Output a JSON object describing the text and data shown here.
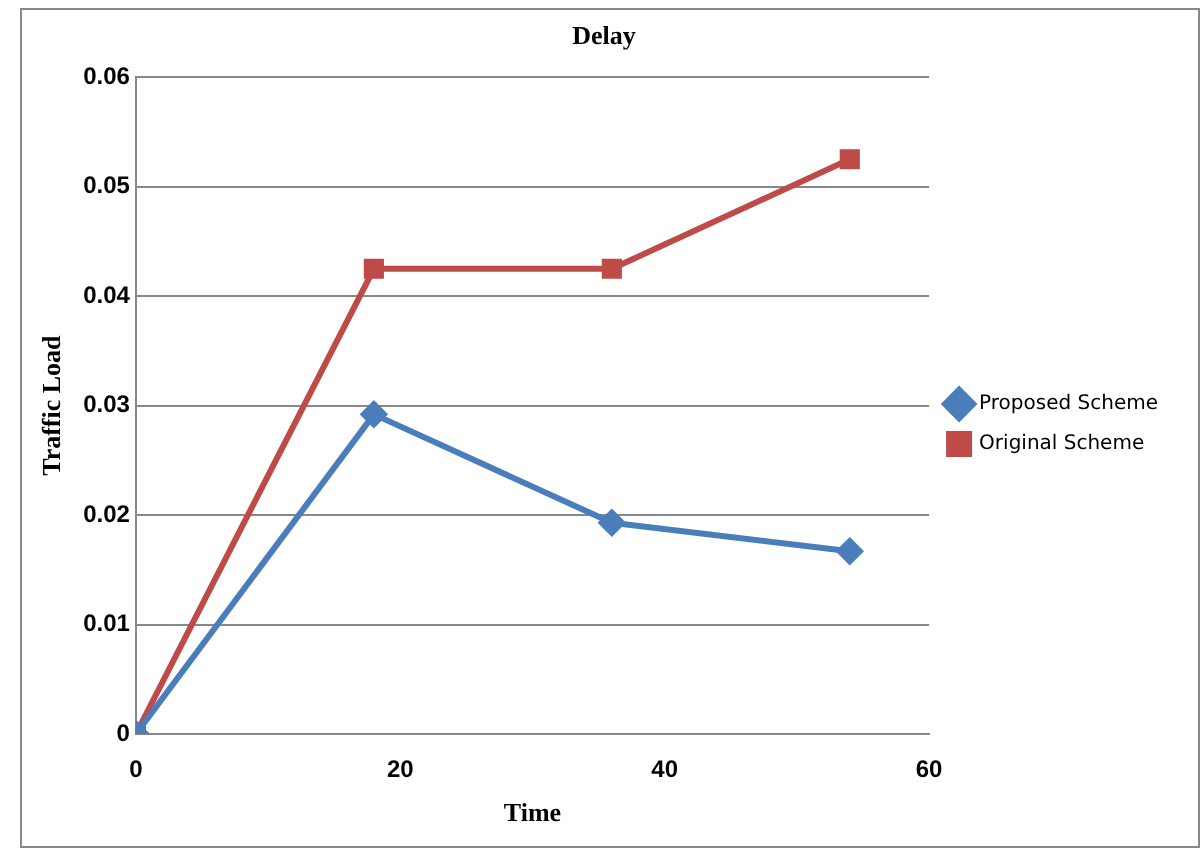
{
  "chart_data": {
    "type": "line",
    "title": "Delay",
    "xlabel": "Time",
    "ylabel": "Traffic Load",
    "x": [
      0,
      18,
      36,
      54
    ],
    "series": [
      {
        "name": "Proposed Scheme",
        "color": "#4a7ebb",
        "values": [
          0,
          0.0292,
          0.0193,
          0.0167
        ],
        "marker": "diamond"
      },
      {
        "name": "Original Scheme",
        "color": "#be4b48",
        "values": [
          0,
          0.0425,
          0.0425,
          0.0525
        ],
        "marker": "square"
      }
    ],
    "xlim": [
      0,
      60
    ],
    "xticks": [
      0,
      20,
      40,
      60
    ],
    "ylim": [
      0,
      0.06
    ],
    "yticks": [
      0,
      0.01,
      0.02,
      0.03,
      0.04,
      0.05,
      0.06
    ],
    "grid": "y",
    "legend": "right"
  }
}
